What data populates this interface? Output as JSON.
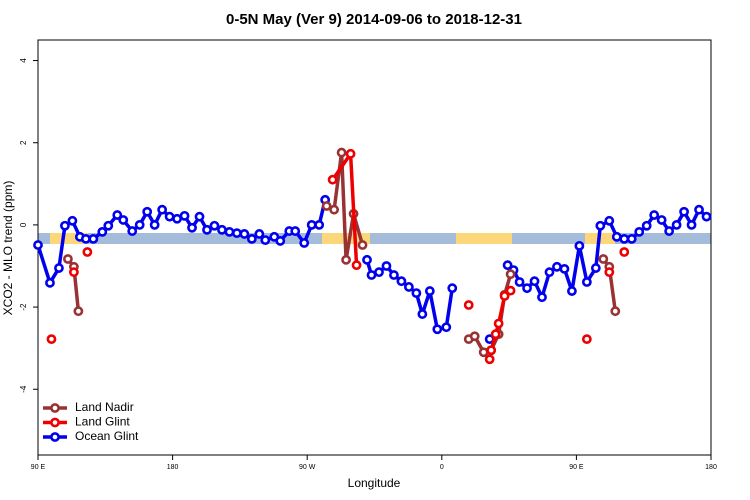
{
  "chart_data": {
    "type": "line",
    "title": "0-5N May (Ver 9)   2014-09-06 to 2018-12-31",
    "x_label": "Longitude",
    "y_label": "XCO2 - MLO trend (ppm)",
    "xlim": [
      90,
      540
    ],
    "ylim": [
      -5.6,
      4.5
    ],
    "xticks": [
      {
        "value": 90,
        "label": "90 E"
      },
      180,
      {
        "value": 270,
        "label": "90 W"
      },
      {
        "value": 360,
        "label": "0"
      },
      {
        "value": 450,
        "label": "90 E"
      },
      {
        "value": 540,
        "label": "180"
      }
    ],
    "yticks": [
      -4,
      -2,
      0,
      2,
      4
    ],
    "legend": "bottom-left",
    "series": [
      {
        "name": "Ocean Glint",
        "color": "#0000ee",
        "x": [
          90,
          98,
          104,
          108,
          113,
          118,
          122,
          127,
          133,
          137,
          143,
          147,
          153,
          158,
          163,
          168,
          173,
          178,
          183,
          188,
          193,
          198,
          203,
          208,
          213,
          218,
          223,
          228,
          233,
          238,
          242,
          248,
          252,
          258,
          262,
          268,
          273,
          278,
          282,
          null,
          310,
          313,
          318,
          323,
          328,
          333,
          338,
          343,
          347,
          352,
          357,
          363,
          367,
          null,
          392,
          null,
          404,
          408,
          412,
          417,
          422,
          427,
          432,
          437,
          442,
          447,
          452,
          457,
          463,
          466,
          472,
          477,
          482,
          487,
          492,
          497,
          502,
          507,
          512,
          517,
          522,
          527,
          532,
          537
        ],
        "values": [
          -0.49,
          -1.41,
          -1.05,
          -0.02,
          0.1,
          -0.29,
          -0.34,
          -0.34,
          -0.17,
          -0.02,
          0.24,
          0.12,
          -0.15,
          0,
          0.32,
          0,
          0.37,
          0.2,
          0.15,
          0.22,
          -0.07,
          0.2,
          -0.12,
          -0.02,
          -0.12,
          -0.17,
          -0.2,
          -0.22,
          -0.34,
          -0.22,
          -0.37,
          -0.29,
          -0.39,
          -0.15,
          -0.15,
          -0.44,
          0,
          0,
          0.61,
          null,
          -0.85,
          -1.22,
          -1.15,
          -1.0,
          -1.22,
          -1.37,
          -1.51,
          -1.66,
          -2.17,
          -1.61,
          -2.54,
          -2.49,
          -1.54,
          null,
          -2.78,
          null,
          -0.98,
          -1.1,
          -1.39,
          -1.54,
          -1.37,
          -1.76,
          -1.15,
          -1.02,
          -1.07,
          -1.61,
          -0.51,
          -1.39,
          -1.05,
          -0.02,
          0.1,
          -0.29,
          -0.34,
          -0.34,
          -0.17,
          -0.02,
          0.24,
          0.12,
          -0.15,
          0,
          0.32,
          0,
          0.37,
          0.2
        ]
      },
      {
        "name": "Land Nadir",
        "color": "#993333",
        "x": [
          110,
          114,
          117,
          null,
          283,
          288,
          293,
          296,
          301,
          307,
          null,
          378,
          382,
          388,
          393,
          398,
          402,
          406,
          null,
          468,
          472,
          476
        ],
        "values": [
          -0.83,
          -1.02,
          -2.1,
          null,
          0.46,
          0.37,
          1.76,
          -0.85,
          0.27,
          -0.49,
          null,
          -2.78,
          -2.71,
          -3.1,
          -3.05,
          -2.66,
          -1.7,
          -1.2,
          null,
          -0.83,
          -1.02,
          -2.1
        ]
      },
      {
        "name": "Land Glint",
        "color": "#ee0000",
        "x": [
          99,
          null,
          114,
          null,
          123,
          null,
          287,
          299,
          303,
          null,
          378,
          null,
          392,
          393,
          396,
          398,
          402,
          406,
          null,
          457,
          null,
          472,
          null,
          482
        ],
        "values": [
          -2.78,
          null,
          -1.15,
          null,
          -0.66,
          null,
          1.1,
          1.73,
          -0.98,
          null,
          -1.95,
          null,
          -3.27,
          -3.05,
          -2.66,
          -2.4,
          -1.73,
          -1.6,
          null,
          -2.78,
          null,
          -1.15,
          null,
          -0.66
        ]
      }
    ]
  }
}
